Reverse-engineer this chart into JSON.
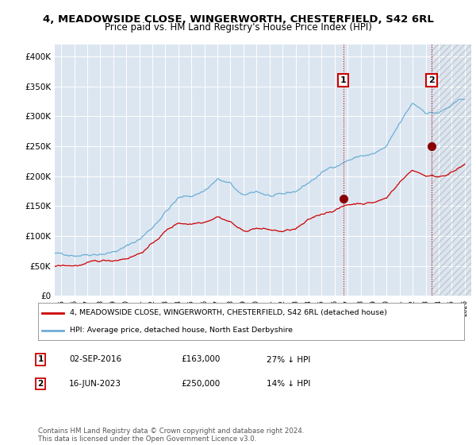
{
  "title": "4, MEADOWSIDE CLOSE, WINGERWORTH, CHESTERFIELD, S42 6RL",
  "subtitle": "Price paid vs. HM Land Registry's House Price Index (HPI)",
  "background_color": "#dce6f1",
  "legend1": "4, MEADOWSIDE CLOSE, WINGERWORTH, CHESTERFIELD, S42 6RL (detached house)",
  "legend2": "HPI: Average price, detached house, North East Derbyshire",
  "annotation1_date": "02-SEP-2016",
  "annotation1_price": "£163,000",
  "annotation1_hpi": "27% ↓ HPI",
  "annotation2_date": "16-JUN-2023",
  "annotation2_price": "£250,000",
  "annotation2_hpi": "14% ↓ HPI",
  "footer": "Contains HM Land Registry data © Crown copyright and database right 2024.\nThis data is licensed under the Open Government Licence v3.0.",
  "hpi_color": "#6baed6",
  "price_color": "#cc0000",
  "marker1_x": 2016.67,
  "marker1_y": 163000,
  "marker2_x": 2023.46,
  "marker2_y": 250000,
  "ylim": [
    0,
    420000
  ],
  "xlim": [
    1994.5,
    2026.5
  ],
  "yticks": [
    0,
    50000,
    100000,
    150000,
    200000,
    250000,
    300000,
    350000,
    400000
  ],
  "ytick_labels": [
    "£0",
    "£50K",
    "£100K",
    "£150K",
    "£200K",
    "£250K",
    "£300K",
    "£350K",
    "£400K"
  ]
}
